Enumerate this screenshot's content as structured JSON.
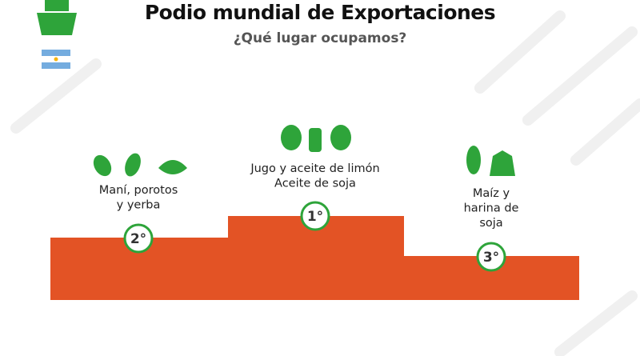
{
  "header": {
    "title": "Podio mundial de Exportaciones",
    "subtitle": "¿Qué lugar ocupamos?"
  },
  "podium": [
    {
      "rank": "2°",
      "lines": [
        "Maní, porotos",
        "y yerba"
      ]
    },
    {
      "rank": "1°",
      "lines": [
        "Jugo y aceite de limón",
        "Aceite de soja"
      ]
    },
    {
      "rank": "3°",
      "lines": [
        "Maíz y",
        "harina de",
        "soja"
      ]
    }
  ]
}
